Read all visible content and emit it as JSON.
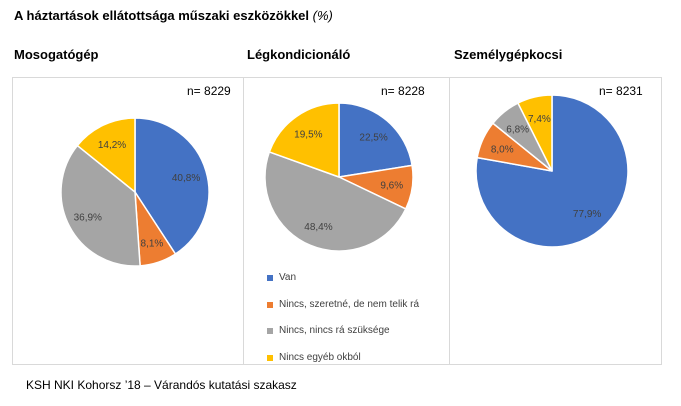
{
  "title": {
    "main": "A háztartások ellátottsága műszaki eszközökkel",
    "suffix": "(%)"
  },
  "colors": {
    "van": "#4472C4",
    "szeretne": "#ED7D31",
    "nincs_szukseg": "#A5A5A5",
    "egyeb": "#FFC000"
  },
  "legend": [
    {
      "label": "Van",
      "color": "#4472C4"
    },
    {
      "label": "Nincs, szeretné, de nem telik rá",
      "color": "#ED7D31"
    },
    {
      "label": "Nincs, nincs rá szüksége",
      "color": "#A5A5A5"
    },
    {
      "label": "Nincs egyéb okból",
      "color": "#FFC000"
    }
  ],
  "footer": "KSH NKI Kohorsz ’18 – Várandós kutatási szakasz",
  "chart_data": [
    {
      "type": "pie",
      "title": "Mosogatógép",
      "n_label": "n= 8229",
      "categories": [
        "Van",
        "Nincs, szeretné, de nem telik rá",
        "Nincs, nincs rá szüksége",
        "Nincs egyéb okból"
      ],
      "values": [
        40.8,
        8.1,
        36.9,
        14.2
      ],
      "labels": [
        "40,8%",
        "8,1%",
        "36,9%",
        "14,2%"
      ],
      "colors": [
        "#4472C4",
        "#ED7D31",
        "#A5A5A5",
        "#FFC000"
      ]
    },
    {
      "type": "pie",
      "title": "Légkondicionáló",
      "n_label": "n= 8228",
      "categories": [
        "Van",
        "Nincs, szeretné, de nem telik rá",
        "Nincs, nincs rá szüksége",
        "Nincs egyéb okból"
      ],
      "values": [
        22.5,
        9.6,
        48.4,
        19.5
      ],
      "labels": [
        "22,5%",
        "9,6%",
        "48,4%",
        "19,5%"
      ],
      "colors": [
        "#4472C4",
        "#ED7D31",
        "#A5A5A5",
        "#FFC000"
      ]
    },
    {
      "type": "pie",
      "title": "Személygépkocsi",
      "n_label": "n= 8231",
      "categories": [
        "Van",
        "Nincs, szeretné, de nem telik rá",
        "Nincs, nincs rá szüksége",
        "Nincs egyéb okból"
      ],
      "values": [
        77.9,
        8.0,
        6.8,
        7.4
      ],
      "labels": [
        "77,9%",
        "8,0%",
        "6,8%",
        "7,4%"
      ],
      "colors": [
        "#4472C4",
        "#ED7D31",
        "#A5A5A5",
        "#FFC000"
      ]
    }
  ]
}
